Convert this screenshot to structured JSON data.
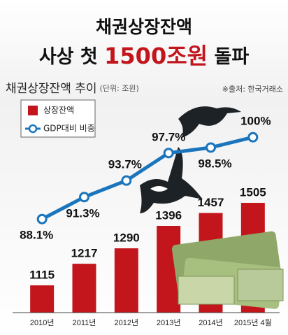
{
  "chart_data": {
    "type": "bar_line",
    "title": "채권상장잔액",
    "headline": [
      "사상 첫",
      "1500조원",
      "돌파"
    ],
    "subtitle": "채권상장잔액 추이",
    "unit": "(단위: 조원)",
    "source": "※출처: 한국거래소",
    "categories": [
      "2010년",
      "2011년",
      "2012년",
      "2013년",
      "2014년",
      "2015년 4월"
    ],
    "series": [
      {
        "name": "상장잔액",
        "color": "#c3161c",
        "values": [
          1115,
          1217,
          1290,
          1396,
          1457,
          1505
        ]
      },
      {
        "name": "GDP대비 비중",
        "color": "#1b75bc",
        "axis": "y2",
        "values": [
          88.1,
          91.3,
          93.7,
          97.7,
          98.5,
          100
        ],
        "value_labels": [
          "88.1%",
          "91.3%",
          "93.7%",
          "97.7%",
          "98.5%",
          "100%"
        ]
      }
    ],
    "ylim": [
      986,
      1968
    ],
    "y2lim": [
      74.5,
      104.7
    ]
  }
}
